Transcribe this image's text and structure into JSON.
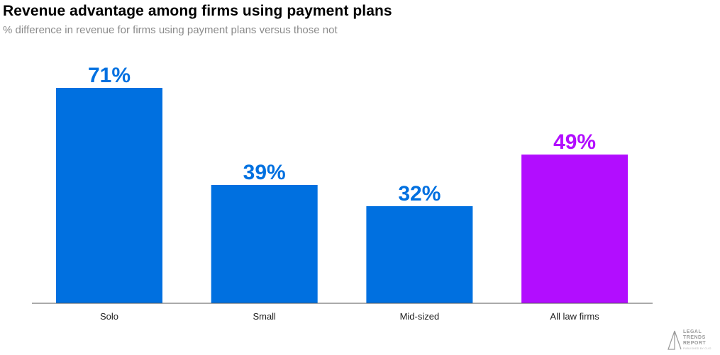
{
  "chart_data": {
    "type": "bar",
    "title": "Revenue advantage among firms using payment plans",
    "subtitle": "% difference in revenue for firms using payment plans versus those not",
    "categories": [
      "Solo",
      "Small",
      "Mid-sized",
      "All law firms"
    ],
    "values": [
      71,
      39,
      32,
      49
    ],
    "value_labels": [
      "71%",
      "39%",
      "32%",
      "49%"
    ],
    "colors": [
      "#0070e0",
      "#0070e0",
      "#0070e0",
      "#b20dff"
    ],
    "xlabel": "",
    "ylabel": "",
    "ylim": [
      0,
      71
    ],
    "grid": false,
    "legend": "none"
  },
  "logo": {
    "lines": [
      "LEGAL",
      "TRENDS",
      "REPORT"
    ],
    "tagline": "PUBLISHED BY CLIO"
  }
}
